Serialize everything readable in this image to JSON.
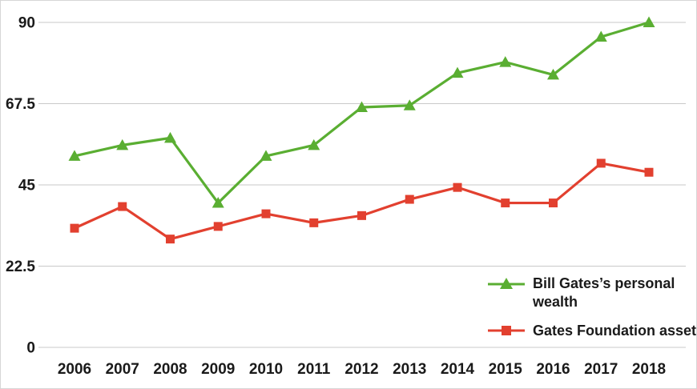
{
  "chart_data": {
    "type": "line",
    "title": "",
    "xlabel": "",
    "ylabel": "",
    "x": [
      "2006",
      "2007",
      "2008",
      "2009",
      "2010",
      "2011",
      "2012",
      "2013",
      "2014",
      "2015",
      "2016",
      "2017",
      "2018"
    ],
    "yticks": [
      "0",
      "22.5",
      "45",
      "67.5",
      "90"
    ],
    "ylim": [
      0,
      90
    ],
    "grid": "horizontal-gridlines",
    "legend_position": "inside-bottom-right",
    "series": [
      {
        "id": "personal-wealth",
        "name": "Bill Gates’s personal wealth",
        "color": "#5aae32",
        "marker": "triangle",
        "values": [
          53,
          56,
          58,
          40,
          53,
          56,
          66.5,
          67,
          76,
          79,
          75.5,
          86,
          90
        ]
      },
      {
        "id": "foundation-assets",
        "name": "Gates Foundation assets",
        "color": "#e2402f",
        "marker": "square",
        "values": [
          33,
          39,
          30,
          33.5,
          37,
          34.5,
          36.5,
          41,
          44.3,
          40,
          40,
          51,
          48.5
        ]
      }
    ]
  },
  "colors": {
    "gridline": "#c9c9c9",
    "text": "#1a1a1a",
    "background": "#ffffff"
  }
}
